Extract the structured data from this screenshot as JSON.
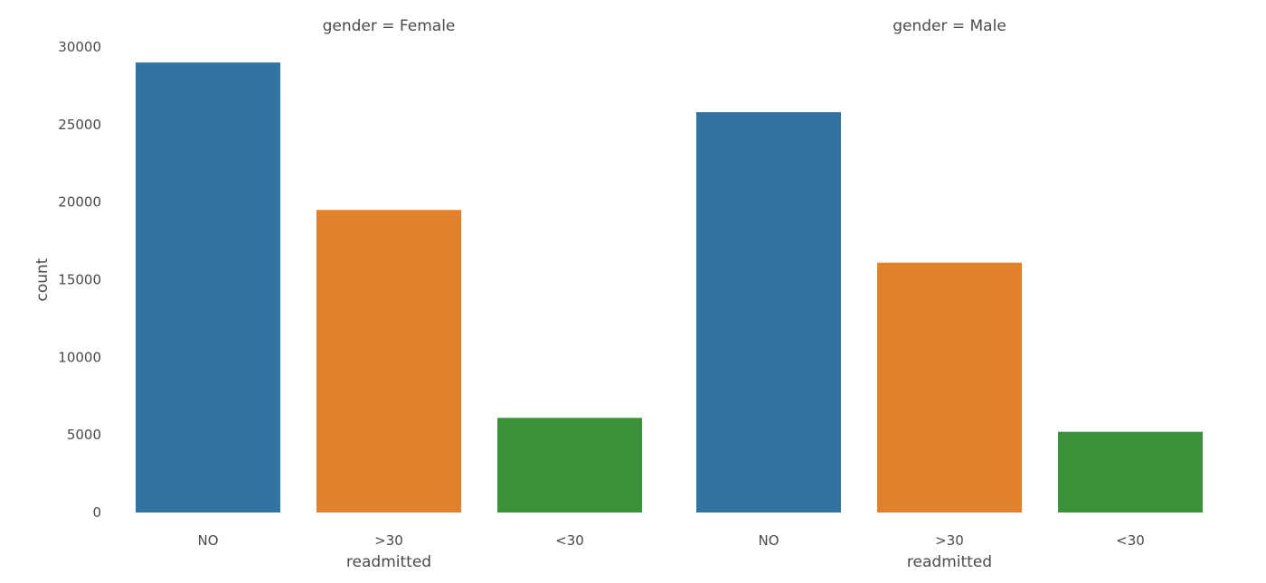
{
  "chart_data": [
    {
      "type": "bar",
      "title": "gender = Female",
      "xlabel": "readmitted",
      "ylabel": "count",
      "categories": [
        "NO",
        ">30",
        "<30"
      ],
      "values": [
        29000,
        19500,
        6100
      ],
      "ylim": [
        0,
        30000
      ],
      "yticks": [
        0,
        5000,
        10000,
        15000,
        20000,
        25000,
        30000
      ],
      "grid": false
    },
    {
      "type": "bar",
      "title": "gender = Male",
      "xlabel": "readmitted",
      "ylabel": "",
      "categories": [
        "NO",
        ">30",
        "<30"
      ],
      "values": [
        25800,
        16100,
        5200
      ],
      "ylim": [
        0,
        30000
      ],
      "yticks": [
        0,
        5000,
        10000,
        15000,
        20000,
        25000,
        30000
      ],
      "grid": false
    }
  ],
  "colors": {
    "NO": "#3274a1",
    ">30": "#e1812c",
    "<30": "#3a923a"
  }
}
